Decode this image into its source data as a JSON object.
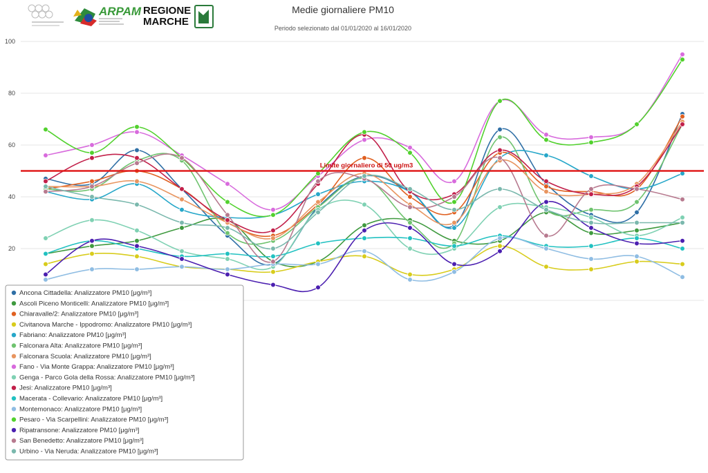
{
  "logos": {
    "arpam": "ARPAM",
    "regione_line1": "REGIONE",
    "regione_line2": "MARCHE"
  },
  "chart_data": {
    "type": "line",
    "title": "Medie giornaliere PM10",
    "subtitle": "Periodo selezionato dal 01/01/2020 al 16/01/2020",
    "xlabel": "",
    "ylabel": "",
    "ylim": [
      0,
      100
    ],
    "yticks": [
      20,
      40,
      60,
      80,
      100
    ],
    "x": [
      1,
      2,
      3,
      4,
      5,
      6,
      7,
      8,
      9,
      10,
      11,
      12,
      13,
      14,
      15
    ],
    "grid": true,
    "legend_placement": "bottom-left",
    "limit": {
      "value": 50,
      "label": "Limite giornaliero di 50 ug/m3",
      "color": "#e01b1b"
    },
    "series": [
      {
        "name": "Ancona Cittadella: Analizzatore PM10 [μg/m³]",
        "color": "#2f6fa6",
        "values": [
          47,
          45,
          58,
          43,
          25,
          14,
          36,
          48,
          42,
          29,
          66,
          45,
          33,
          34,
          72
        ]
      },
      {
        "name": "Ascoli Piceno Monticelli: Analizzatore PM10 [μg/m³]",
        "color": "#3f9a3f",
        "values": [
          18,
          21,
          23,
          28,
          31,
          15,
          15,
          29,
          31,
          23,
          23,
          34,
          26,
          27,
          30
        ]
      },
      {
        "name": "Chiaravalle/2: Analizzatore PM10 [μg/m³]",
        "color": "#e06020",
        "values": [
          43,
          46,
          50,
          43,
          30,
          25,
          37,
          55,
          40,
          34,
          57,
          44,
          42,
          43,
          71
        ]
      },
      {
        "name": "Civitanova Marche - Ippodromo: Analizzatore PM10 [μg/m³]",
        "color": "#d8cc1c",
        "values": [
          14,
          18,
          17,
          13,
          12,
          11,
          15,
          17,
          10,
          12,
          21,
          13,
          12,
          15,
          14
        ]
      },
      {
        "name": "Fabriano: Analizzatore PM10 [μg/m³]",
        "color": "#26a7c9",
        "values": [
          42,
          39,
          45,
          35,
          32,
          33,
          41,
          46,
          42,
          28,
          55,
          56,
          48,
          43,
          49
        ]
      },
      {
        "name": "Falconara Alta: Analizzatore PM10 [μg/m³]",
        "color": "#6fc36f",
        "values": [
          43,
          43,
          54,
          54,
          26,
          23,
          36,
          47,
          30,
          22,
          63,
          35,
          35,
          38,
          68
        ]
      },
      {
        "name": "Falconara Scuola: Analizzatore PM10 [μg/m³]",
        "color": "#e89560",
        "values": [
          44,
          44,
          46,
          39,
          30,
          24,
          38,
          49,
          37,
          30,
          54,
          42,
          41,
          45,
          69
        ]
      },
      {
        "name": "Fano - Via Monte Grappa: Analizzatore PM10 [μg/m³]",
        "color": "#d86bdd",
        "values": [
          56,
          60,
          65,
          56,
          45,
          35,
          48,
          62,
          59,
          46,
          77,
          64,
          63,
          68,
          95
        ]
      },
      {
        "name": "Genga - Parco Gola della Rossa: Analizzatore PM10 [μg/m³]",
        "color": "#7fd1b3",
        "values": [
          24,
          31,
          27,
          19,
          16,
          13,
          35,
          37,
          20,
          20,
          36,
          36,
          32,
          25,
          32
        ]
      },
      {
        "name": "Jesi: Analizzatore PM10 [μg/m³]",
        "color": "#c2204a",
        "values": [
          46,
          55,
          55,
          43,
          31,
          27,
          45,
          64,
          42,
          41,
          58,
          46,
          41,
          44,
          68
        ]
      },
      {
        "name": "Macerata - Collevario: Analizzatore PM10 [μg/m³]",
        "color": "#21c1c1",
        "values": [
          18,
          23,
          20,
          17,
          18,
          17,
          22,
          24,
          24,
          21,
          25,
          21,
          21,
          24,
          20
        ]
      },
      {
        "name": "Montemonaco: Analizzatore PM10 [μg/m³]",
        "color": "#8fbde3",
        "values": [
          8,
          12,
          12,
          13,
          12,
          14,
          14,
          19,
          8,
          11,
          24,
          20,
          16,
          17,
          9
        ]
      },
      {
        "name": "Pesaro - Via Scarpellini: Analizzatore PM10 [μg/m³]",
        "color": "#52d12e",
        "values": [
          66,
          57,
          67,
          55,
          38,
          33,
          49,
          65,
          57,
          38,
          77,
          62,
          61,
          68,
          93
        ]
      },
      {
        "name": "Ripatransone: Analizzatore PM10 [μg/m³]",
        "color": "#4b1fb0",
        "values": [
          10,
          23,
          21,
          16,
          10,
          6,
          5,
          27,
          28,
          14,
          19,
          38,
          28,
          22,
          23
        ]
      },
      {
        "name": "San Benedetto: Analizzatore PM10 [μg/m³]",
        "color": "#b77a8f",
        "values": [
          42,
          44,
          53,
          55,
          33,
          15,
          46,
          47,
          36,
          40,
          55,
          25,
          43,
          43,
          39
        ]
      },
      {
        "name": "Urbino - Via Neruda: Analizzatore PM10 [μg/m³]",
        "color": "#7ab8ad",
        "values": [
          44,
          40,
          37,
          30,
          28,
          20,
          34,
          48,
          43,
          35,
          43,
          35,
          30,
          30,
          30
        ]
      }
    ]
  }
}
